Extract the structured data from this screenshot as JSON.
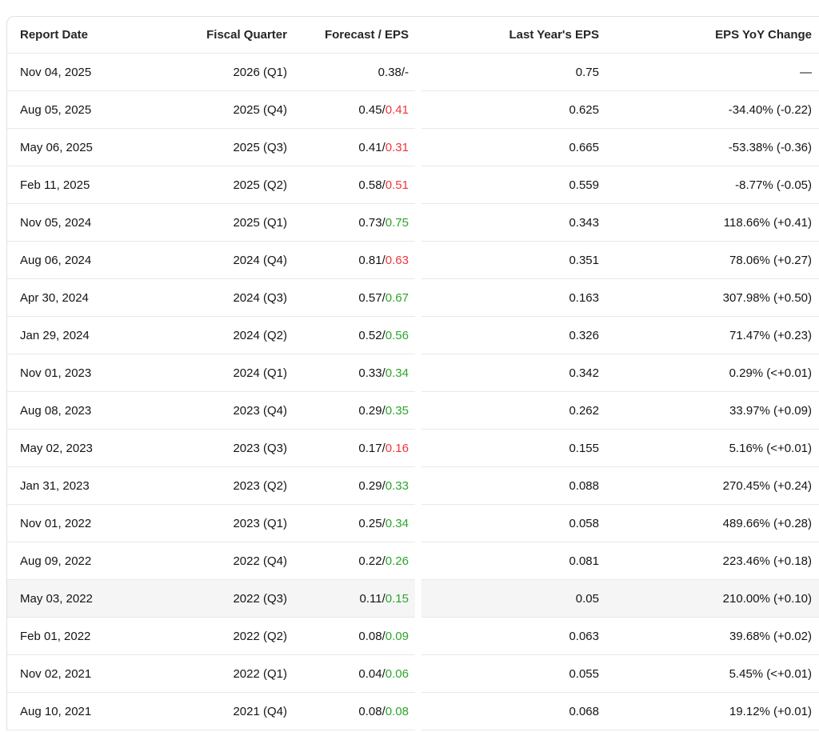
{
  "table": {
    "name": "earnings-history-table",
    "columns": {
      "report_date": "Report Date",
      "fiscal_quarter": "Fiscal Quarter",
      "forecast_eps": "Forecast / EPS",
      "last_year_eps": "Last Year's EPS",
      "eps_yoy_change": "EPS YoY Change"
    },
    "forecast_separator": " / ",
    "colors": {
      "up": "#2da42c",
      "down": "#f23539",
      "text": "#141414",
      "header_text": "#262626",
      "border": "#e8e8e8",
      "row_highlight": "#f5f5f5"
    },
    "rows": [
      {
        "report_date": "Nov 04, 2025",
        "fiscal_quarter": "2026 (Q1)",
        "forecast": "0.38",
        "actual": "-",
        "actual_color": "neutral",
        "last_year_eps": "0.75",
        "yoy_change": "—",
        "highlighted": false
      },
      {
        "report_date": "Aug 05, 2025",
        "fiscal_quarter": "2025 (Q4)",
        "forecast": "0.45",
        "actual": "0.41",
        "actual_color": "down",
        "last_year_eps": "0.625",
        "yoy_change": "-34.40% (-0.22)",
        "highlighted": false
      },
      {
        "report_date": "May 06, 2025",
        "fiscal_quarter": "2025 (Q3)",
        "forecast": "0.41",
        "actual": "0.31",
        "actual_color": "down",
        "last_year_eps": "0.665",
        "yoy_change": "-53.38% (-0.36)",
        "highlighted": false
      },
      {
        "report_date": "Feb 11, 2025",
        "fiscal_quarter": "2025 (Q2)",
        "forecast": "0.58",
        "actual": "0.51",
        "actual_color": "down",
        "last_year_eps": "0.559",
        "yoy_change": "-8.77% (-0.05)",
        "highlighted": false
      },
      {
        "report_date": "Nov 05, 2024",
        "fiscal_quarter": "2025 (Q1)",
        "forecast": "0.73",
        "actual": "0.75",
        "actual_color": "up",
        "last_year_eps": "0.343",
        "yoy_change": "118.66% (+0.41)",
        "highlighted": false
      },
      {
        "report_date": "Aug 06, 2024",
        "fiscal_quarter": "2024 (Q4)",
        "forecast": "0.81",
        "actual": "0.63",
        "actual_color": "down",
        "last_year_eps": "0.351",
        "yoy_change": "78.06% (+0.27)",
        "highlighted": false
      },
      {
        "report_date": "Apr 30, 2024",
        "fiscal_quarter": "2024 (Q3)",
        "forecast": "0.57",
        "actual": "0.67",
        "actual_color": "up",
        "last_year_eps": "0.163",
        "yoy_change": "307.98% (+0.50)",
        "highlighted": false
      },
      {
        "report_date": "Jan 29, 2024",
        "fiscal_quarter": "2024 (Q2)",
        "forecast": "0.52",
        "actual": "0.56",
        "actual_color": "up",
        "last_year_eps": "0.326",
        "yoy_change": "71.47% (+0.23)",
        "highlighted": false
      },
      {
        "report_date": "Nov 01, 2023",
        "fiscal_quarter": "2024 (Q1)",
        "forecast": "0.33",
        "actual": "0.34",
        "actual_color": "up",
        "last_year_eps": "0.342",
        "yoy_change": "0.29% (<+0.01)",
        "highlighted": false
      },
      {
        "report_date": "Aug 08, 2023",
        "fiscal_quarter": "2023 (Q4)",
        "forecast": "0.29",
        "actual": "0.35",
        "actual_color": "up",
        "last_year_eps": "0.262",
        "yoy_change": "33.97% (+0.09)",
        "highlighted": false
      },
      {
        "report_date": "May 02, 2023",
        "fiscal_quarter": "2023 (Q3)",
        "forecast": "0.17",
        "actual": "0.16",
        "actual_color": "down",
        "last_year_eps": "0.155",
        "yoy_change": "5.16% (<+0.01)",
        "highlighted": false
      },
      {
        "report_date": "Jan 31, 2023",
        "fiscal_quarter": "2023 (Q2)",
        "forecast": "0.29",
        "actual": "0.33",
        "actual_color": "up",
        "last_year_eps": "0.088",
        "yoy_change": "270.45% (+0.24)",
        "highlighted": false
      },
      {
        "report_date": "Nov 01, 2022",
        "fiscal_quarter": "2023 (Q1)",
        "forecast": "0.25",
        "actual": "0.34",
        "actual_color": "up",
        "last_year_eps": "0.058",
        "yoy_change": "489.66% (+0.28)",
        "highlighted": false
      },
      {
        "report_date": "Aug 09, 2022",
        "fiscal_quarter": "2022 (Q4)",
        "forecast": "0.22",
        "actual": "0.26",
        "actual_color": "up",
        "last_year_eps": "0.081",
        "yoy_change": "223.46% (+0.18)",
        "highlighted": false
      },
      {
        "report_date": "May 03, 2022",
        "fiscal_quarter": "2022 (Q3)",
        "forecast": "0.11",
        "actual": "0.15",
        "actual_color": "up",
        "last_year_eps": "0.05",
        "yoy_change": "210.00% (+0.10)",
        "highlighted": true
      },
      {
        "report_date": "Feb 01, 2022",
        "fiscal_quarter": "2022 (Q2)",
        "forecast": "0.08",
        "actual": "0.09",
        "actual_color": "up",
        "last_year_eps": "0.063",
        "yoy_change": "39.68% (+0.02)",
        "highlighted": false
      },
      {
        "report_date": "Nov 02, 2021",
        "fiscal_quarter": "2022 (Q1)",
        "forecast": "0.04",
        "actual": "0.06",
        "actual_color": "up",
        "last_year_eps": "0.055",
        "yoy_change": "5.45% (<+0.01)",
        "highlighted": false
      },
      {
        "report_date": "Aug 10, 2021",
        "fiscal_quarter": "2021 (Q4)",
        "forecast": "0.08",
        "actual": "0.08",
        "actual_color": "up",
        "last_year_eps": "0.068",
        "yoy_change": "19.12% (+0.01)",
        "highlighted": false
      }
    ]
  }
}
